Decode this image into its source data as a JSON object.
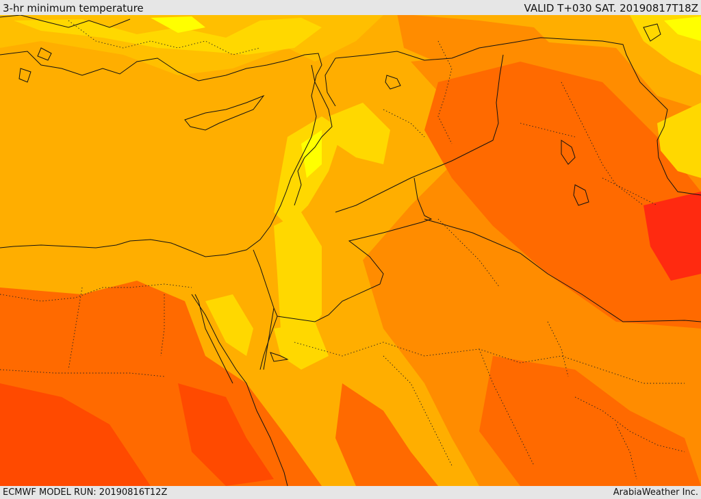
{
  "header": {
    "title": "3-hr minimum temperature",
    "valid": "VALID T+030 SAT. 20190817T18Z"
  },
  "footer": {
    "model_run": "ECMWF MODEL RUN: 20190816T12Z",
    "credit": "ArabiaWeather Inc."
  },
  "palette": {
    "sea": "#ffae00",
    "yellow": "#ffd800",
    "bright_yellow": "#ffff00",
    "light_orange": "#ffbf00",
    "orange": "#ff8c00",
    "dark_orange": "#ff6a00",
    "red_orange": "#ff4a00",
    "red": "#ff2a10",
    "border": "#111111"
  }
}
